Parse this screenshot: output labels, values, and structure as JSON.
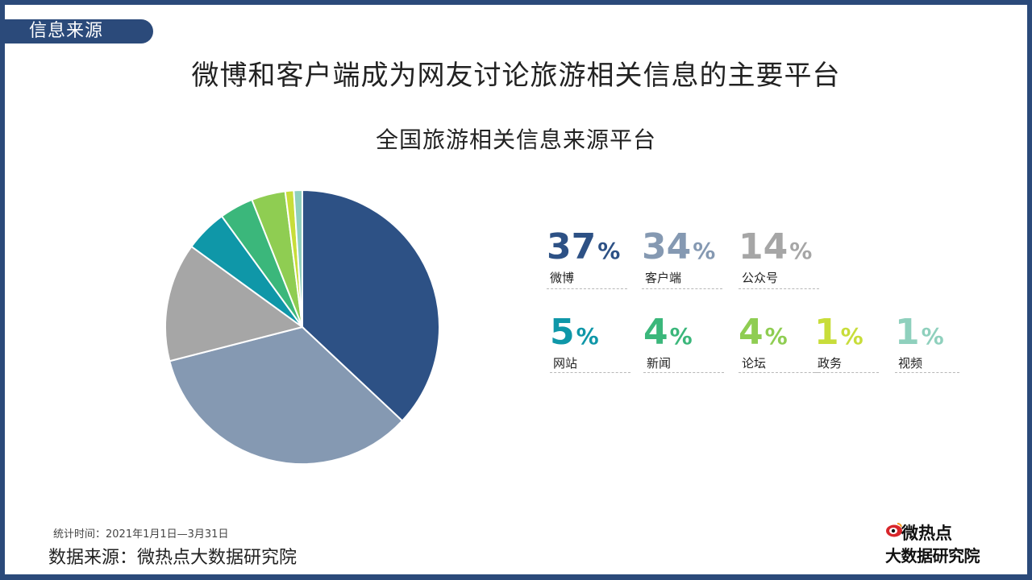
{
  "section_tag": "信息来源",
  "headline": "微博和客户端成为网友讨论旅游相关信息的主要平台",
  "chart_data": {
    "type": "pie",
    "title": "全国旅游相关信息来源平台",
    "categories": [
      "微博",
      "客户端",
      "公众号",
      "网站",
      "新闻",
      "论坛",
      "政务",
      "视频"
    ],
    "values": [
      37,
      34,
      14,
      5,
      4,
      4,
      1,
      1
    ],
    "value_labels": [
      "37",
      "34",
      "14",
      "5",
      "4",
      "4",
      "1",
      "1"
    ],
    "percent_sign": "%",
    "colors": [
      "#2d5185",
      "#8599b2",
      "#a6a6a6",
      "#0f97a8",
      "#3bb77b",
      "#8fcd52",
      "#c8dd3a",
      "#8fd0bd"
    ],
    "legend_placement": "right"
  },
  "footer": {
    "stat_period": "统计时间：2021年1月1日—3月31日",
    "source": "数据来源：微热点大数据研究院"
  },
  "logo": {
    "line1": "微热点",
    "line2": "大数据研究院"
  }
}
